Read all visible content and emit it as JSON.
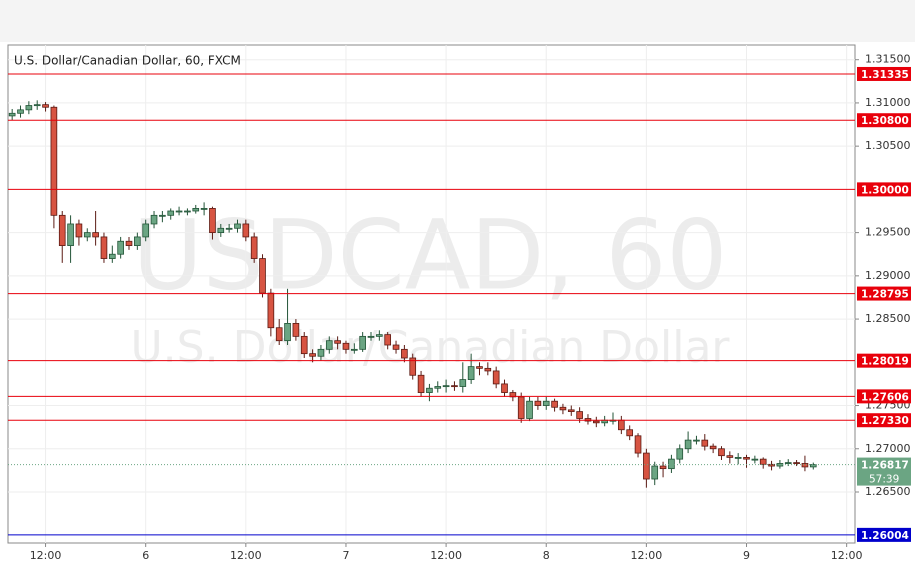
{
  "chart_data": {
    "type": "candlestick",
    "title": "U.S. Dollar/Canadian Dollar, 60, FXCM",
    "watermark": "USDCAD, 60",
    "watermark_subtitle": "U.S. Dollar/Canadian Dollar",
    "countdown": "57:39",
    "up_color": "#6ba583",
    "up_border": "#225437",
    "down_color": "#d75442",
    "down_border": "#5b1a13",
    "grid": true,
    "xlim": [
      -0.5,
      101
    ],
    "xticks": [
      {
        "value": 4,
        "label": "12:00"
      },
      {
        "value": 16,
        "label": "6"
      },
      {
        "value": 28,
        "label": "12:00"
      },
      {
        "value": 40,
        "label": "7"
      },
      {
        "value": 52,
        "label": "12:00"
      },
      {
        "value": 64,
        "label": "8"
      },
      {
        "value": 76,
        "label": "12:00"
      },
      {
        "value": 88,
        "label": "9"
      },
      {
        "value": 100,
        "label": "12:00"
      }
    ],
    "ylim": [
      1.2591,
      1.3167
    ],
    "yticks": [
      {
        "value": 1.315,
        "label": "1.31500"
      },
      {
        "value": 1.31,
        "label": "1.31000"
      },
      {
        "value": 1.305,
        "label": "1.30500"
      },
      {
        "value": 1.295,
        "label": "1.29500"
      },
      {
        "value": 1.29,
        "label": "1.29000"
      },
      {
        "value": 1.285,
        "label": "1.28500"
      },
      {
        "value": 1.275,
        "label": "1.27500"
      },
      {
        "value": 1.27,
        "label": "1.27000"
      },
      {
        "value": 1.265,
        "label": "1.26500"
      }
    ],
    "levels": [
      {
        "value": 1.31335,
        "color": "#e8000b"
      },
      {
        "value": 1.308,
        "label": "1.30800",
        "color": "#e8000b"
      },
      {
        "value": 1.3,
        "label": "1.30000",
        "color": "#e8000b"
      },
      {
        "value": 1.28795,
        "color": "#e8000b"
      },
      {
        "value": 1.28019,
        "color": "#e8000b"
      },
      {
        "value": 1.27606,
        "color": "#e8000b"
      },
      {
        "value": 1.2733,
        "label": "1.27330",
        "color": "#e8000b"
      },
      {
        "value": 1.26004,
        "color": "#0000cc"
      }
    ],
    "open": [
      1.3085,
      1.3088,
      1.3092,
      1.3097,
      1.3098,
      1.3095,
      1.297,
      1.2935,
      1.296,
      1.2945,
      1.295,
      1.2945,
      1.292,
      1.2925,
      1.294,
      1.2935,
      1.2945,
      1.296,
      1.297,
      1.297,
      1.2975,
      1.2975,
      1.2975,
      1.2978,
      1.2978,
      1.295,
      1.2955,
      1.2955,
      1.296,
      1.2945,
      1.292,
      1.288,
      1.284,
      1.2825,
      1.2845,
      1.283,
      1.281,
      1.2807,
      1.2815,
      1.2825,
      1.2822,
      1.2815,
      1.2815,
      1.283,
      1.283,
      1.2832,
      1.282,
      1.2815,
      1.2805,
      1.2785,
      1.2765,
      1.277,
      1.2772,
      1.2773,
      1.2772,
      1.278,
      1.2795,
      1.2793,
      1.279,
      1.2775,
      1.2765,
      1.276,
      1.2735,
      1.2755,
      1.275,
      1.2755,
      1.2748,
      1.2745,
      1.2743,
      1.2735,
      1.2732,
      1.273,
      1.2733,
      1.2733,
      1.2722,
      1.2715,
      1.2695,
      1.2665,
      1.268,
      1.2677,
      1.2688,
      1.27,
      1.271,
      1.271,
      1.2703,
      1.27,
      1.2692,
      1.269,
      1.269,
      1.2688,
      1.2688,
      1.2682,
      1.268,
      1.2683,
      1.2684,
      1.2683,
      1.2679
    ],
    "high": [
      1.3093,
      1.3097,
      1.3102,
      1.3103,
      1.3101,
      1.3097,
      1.2975,
      1.297,
      1.2965,
      1.2955,
      1.2975,
      1.295,
      1.2935,
      1.2945,
      1.2945,
      1.295,
      1.2965,
      1.2975,
      1.2975,
      1.2978,
      1.298,
      1.2978,
      1.2982,
      1.2985,
      1.298,
      1.296,
      1.296,
      1.2965,
      1.2965,
      1.295,
      1.2925,
      1.2885,
      1.285,
      1.2885,
      1.285,
      1.2835,
      1.2815,
      1.282,
      1.283,
      1.283,
      1.2825,
      1.2822,
      1.2835,
      1.2835,
      1.2837,
      1.2835,
      1.2825,
      1.282,
      1.281,
      1.279,
      1.2775,
      1.2778,
      1.278,
      1.2778,
      1.28,
      1.281,
      1.28,
      1.28,
      1.2795,
      1.278,
      1.2768,
      1.2765,
      1.276,
      1.276,
      1.276,
      1.2758,
      1.2752,
      1.275,
      1.2748,
      1.274,
      1.2737,
      1.2738,
      1.2742,
      1.2738,
      1.2727,
      1.2718,
      1.27,
      1.2685,
      1.2685,
      1.2693,
      1.2705,
      1.272,
      1.2715,
      1.2717,
      1.2706,
      1.2703,
      1.2697,
      1.2695,
      1.2693,
      1.2692,
      1.269,
      1.2686,
      1.2687,
      1.2688,
      1.2687,
      1.2692,
      1.2684
    ],
    "low": [
      1.308,
      1.3083,
      1.3087,
      1.3092,
      1.309,
      1.2955,
      1.2915,
      1.2915,
      1.2935,
      1.294,
      1.2935,
      1.2915,
      1.2915,
      1.292,
      1.293,
      1.293,
      1.294,
      1.2955,
      1.2962,
      1.2965,
      1.297,
      1.297,
      1.2972,
      1.297,
      1.2942,
      1.2945,
      1.295,
      1.295,
      1.294,
      1.2915,
      1.2875,
      1.283,
      1.282,
      1.282,
      1.2825,
      1.2805,
      1.28,
      1.2802,
      1.281,
      1.2815,
      1.281,
      1.281,
      1.2812,
      1.2825,
      1.2825,
      1.2815,
      1.281,
      1.28,
      1.278,
      1.276,
      1.2755,
      1.2765,
      1.2765,
      1.2767,
      1.2765,
      1.2775,
      1.2785,
      1.2785,
      1.277,
      1.276,
      1.2755,
      1.273,
      1.2732,
      1.2745,
      1.2745,
      1.2743,
      1.274,
      1.2738,
      1.273,
      1.2728,
      1.2725,
      1.2726,
      1.2728,
      1.2717,
      1.271,
      1.269,
      1.2655,
      1.2658,
      1.2667,
      1.2672,
      1.2683,
      1.2695,
      1.2705,
      1.2698,
      1.2695,
      1.2687,
      1.2683,
      1.2682,
      1.2678,
      1.2683,
      1.2677,
      1.2675,
      1.2677,
      1.268,
      1.268,
      1.2674,
      1.2676
    ],
    "close": [
      1.3088,
      1.3092,
      1.3097,
      1.3098,
      1.3095,
      1.297,
      1.2935,
      1.296,
      1.2945,
      1.295,
      1.2945,
      1.292,
      1.2925,
      1.294,
      1.2935,
      1.2945,
      1.296,
      1.297,
      1.297,
      1.2975,
      1.2975,
      1.2975,
      1.2978,
      1.2978,
      1.295,
      1.2955,
      1.2955,
      1.296,
      1.2945,
      1.292,
      1.288,
      1.284,
      1.2825,
      1.2845,
      1.283,
      1.281,
      1.2807,
      1.2815,
      1.2825,
      1.2822,
      1.2815,
      1.2815,
      1.283,
      1.283,
      1.2832,
      1.282,
      1.2815,
      1.2805,
      1.2785,
      1.2765,
      1.277,
      1.2772,
      1.2773,
      1.2772,
      1.278,
      1.2795,
      1.2793,
      1.279,
      1.2775,
      1.2765,
      1.276,
      1.2735,
      1.2755,
      1.275,
      1.2755,
      1.2748,
      1.2745,
      1.2743,
      1.2735,
      1.2732,
      1.273,
      1.2733,
      1.2733,
      1.2722,
      1.2715,
      1.2695,
      1.2665,
      1.268,
      1.2677,
      1.2688,
      1.27,
      1.271,
      1.271,
      1.2703,
      1.27,
      1.2692,
      1.269,
      1.269,
      1.2688,
      1.2688,
      1.2682,
      1.268,
      1.2683,
      1.2684,
      1.2683,
      1.2679,
      1.26817
    ]
  }
}
